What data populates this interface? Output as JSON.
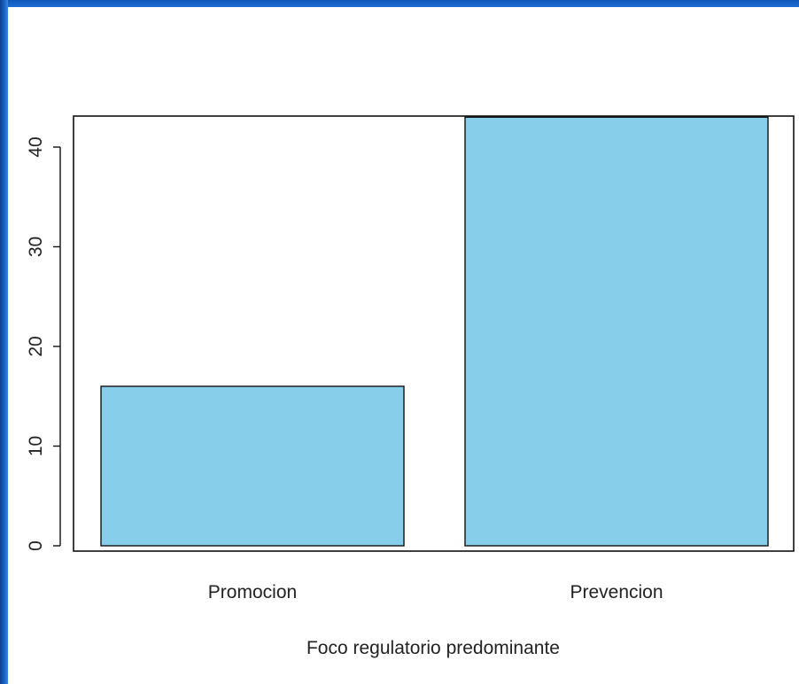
{
  "chart_data": {
    "type": "bar",
    "categories": [
      "Promocion",
      "Prevencion"
    ],
    "values": [
      16,
      43
    ],
    "title": "",
    "xlabel": "Foco regulatorio predominante",
    "ylabel": "",
    "ylim": [
      0,
      43
    ],
    "yticks": [
      0,
      10,
      20,
      30,
      40
    ],
    "grid": false,
    "legend": "none",
    "bar_color": "#87ceeb",
    "bar_edge_color": "#111111"
  }
}
